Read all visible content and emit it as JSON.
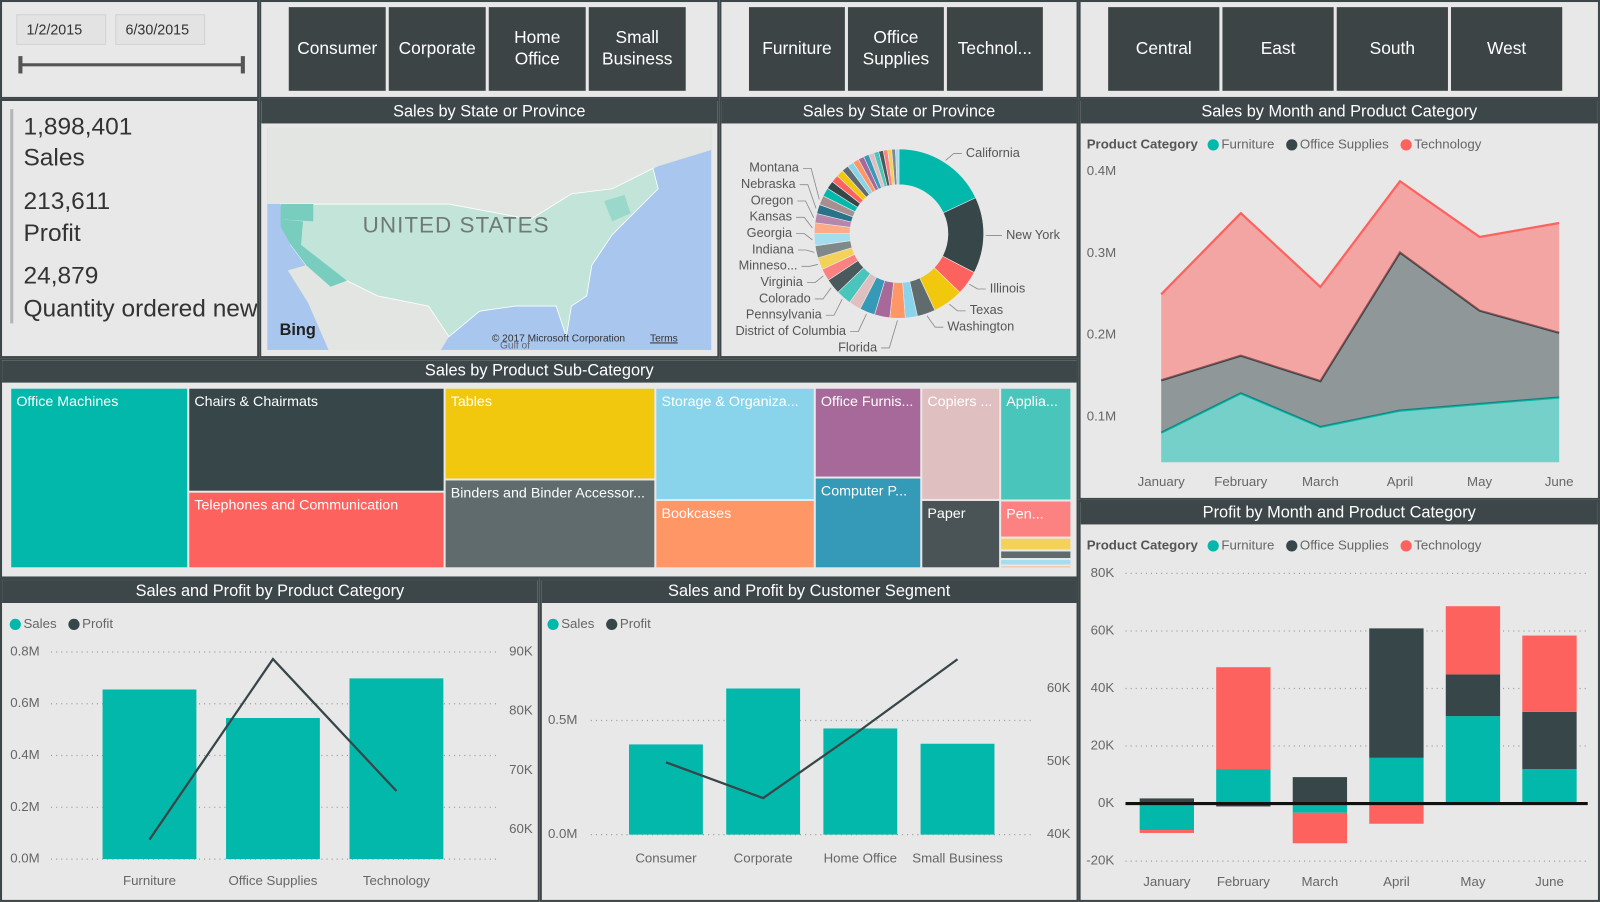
{
  "slicers": {
    "date": {
      "start": "1/2/2015",
      "end": "6/30/2015"
    },
    "segments": [
      "Consumer",
      "Corporate",
      "Home Office",
      "Small Business"
    ],
    "categories": [
      "Furniture",
      "Office Supplies",
      "Technol..."
    ],
    "regions": [
      "Central",
      "East",
      "South",
      "West"
    ]
  },
  "cards": [
    {
      "value": "1,898,401",
      "label": "Sales"
    },
    {
      "value": "213,611",
      "label": "Profit"
    },
    {
      "value": "24,879",
      "label": "Quantity ordered new"
    }
  ],
  "map": {
    "title": "Sales by State or Province",
    "label": "UNITED STATES",
    "provider": "Bing",
    "copyright": "© 2017 Microsoft Corporation",
    "terms": "Terms",
    "water_label": "Gulf of"
  },
  "chart_data": [
    {
      "type": "donut",
      "title": "Sales by State or Province",
      "categories": [
        "California",
        "New York",
        "Illinois",
        "Texas",
        "Washington",
        null,
        "Florida",
        null,
        "District of Columbia",
        null,
        "Pennsylvania",
        "Colorado",
        "Virginia",
        "Minneso...",
        "Indiana",
        "Georgia",
        "Kansas",
        "Oregon",
        "Nebraska",
        "Montana",
        null,
        null,
        null,
        null,
        null,
        null,
        null,
        null,
        null,
        null,
        null,
        null,
        null,
        null,
        null,
        null
      ],
      "values": [
        327000,
        264000,
        84000,
        105000,
        63000,
        42000,
        53000,
        53000,
        53000,
        42000,
        53000,
        53000,
        42000,
        42000,
        42000,
        42000,
        37000,
        32000,
        32000,
        32000,
        30000,
        28000,
        26000,
        25000,
        24000,
        22000,
        21000,
        20000,
        19000,
        18000,
        17000,
        16000,
        15000,
        14000,
        13000,
        12000
      ],
      "colors": [
        "#01B8AA",
        "#374649",
        "#FD625E",
        "#F2C80F",
        "#5F6B6D",
        "#8AD4EB",
        "#FE9666",
        "#A66999",
        "#3599B8",
        "#DFBFBF",
        "#4AC5BB",
        "#4A5A5C",
        "#FB8281",
        "#F4D25A",
        "#7F898A",
        "#A4DDEE",
        "#FDAB89",
        "#B687AC",
        "#28738A",
        "#A78F8F"
      ]
    },
    {
      "type": "area",
      "stacked": true,
      "title": "Sales by Month and Product Category",
      "legend_title": "Product Category",
      "categories": [
        "January",
        "February",
        "March",
        "April",
        "May",
        "June"
      ],
      "series": [
        {
          "name": "Furniture",
          "color": "#01B8AA",
          "values": [
            81000,
            129000,
            88000,
            108000,
            116000,
            124000
          ]
        },
        {
          "name": "Office Supplies",
          "color": "#374649",
          "values": [
            64000,
            46000,
            56000,
            193000,
            114000,
            79000
          ]
        },
        {
          "name": "Technology",
          "color": "#FD625E",
          "values": [
            105000,
            174000,
            115000,
            87000,
            90000,
            134000
          ]
        }
      ],
      "ylim": [
        45000,
        400000
      ],
      "yticks": [
        {
          "value": 100000,
          "label": "0.1M"
        },
        {
          "value": 200000,
          "label": "0.2M"
        },
        {
          "value": 300000,
          "label": "0.3M"
        },
        {
          "value": 400000,
          "label": "0.4M"
        }
      ],
      "grid": false
    },
    {
      "type": "bar",
      "stacked": true,
      "title": "Profit by Month and Product Category",
      "legend_title": "Product Category",
      "categories": [
        "January",
        "February",
        "March",
        "April",
        "May",
        "June"
      ],
      "series": [
        {
          "name": "Furniture",
          "color": "#01B8AA",
          "values": [
            -9200,
            12000,
            -3200,
            15900,
            30400,
            12000
          ]
        },
        {
          "name": "Office Supplies",
          "color": "#374649",
          "values": [
            1800,
            -1000,
            9200,
            45000,
            14500,
            19900
          ]
        },
        {
          "name": "Technology",
          "color": "#FD625E",
          "values": [
            -1000,
            35400,
            -10600,
            -7000,
            23700,
            26500
          ]
        }
      ],
      "ylim": [
        -20000,
        80000
      ],
      "yticks": [
        {
          "value": -20000,
          "label": "-20K"
        },
        {
          "value": 0,
          "label": "0K"
        },
        {
          "value": 20000,
          "label": "20K"
        },
        {
          "value": 40000,
          "label": "40K"
        },
        {
          "value": 60000,
          "label": "60K"
        },
        {
          "value": 80000,
          "label": "80K"
        }
      ],
      "grid": true
    },
    {
      "type": "treemap",
      "title": "Sales by Product Sub-Category",
      "categories": [
        "Office Machines",
        "Chairs & Chairmats",
        "Telephones and Communication",
        "Tables",
        "Binders and Binder Accessor...",
        "Storage & Organiza...",
        "Bookcases",
        "Office Furnis...",
        "Computer P...",
        "Copiers ...",
        "Paper",
        "Applia...",
        "Pen...",
        null,
        null,
        null,
        null
      ],
      "values": [
        316000,
        262000,
        193000,
        190000,
        184000,
        176000,
        107000,
        94000,
        95000,
        87000,
        53000,
        79000,
        26000,
        9000,
        6000,
        4500,
        2000
      ],
      "colors": [
        "#01B8AA",
        "#374649",
        "#FD625E",
        "#F2C80F",
        "#5F6B6D",
        "#8AD4EB",
        "#FE9666",
        "#A66999",
        "#3599B8",
        "#DFBFBF",
        "#4A5456",
        "#4AC5BB",
        "#FB8281",
        "#F4D25A",
        "#5F6B6D",
        "#A4DDEE",
        "#FDAB89"
      ]
    },
    {
      "type": "combo",
      "title": "Sales and Profit by Product Category",
      "categories": [
        "Furniture",
        "Office Supplies",
        "Technology"
      ],
      "series": [
        {
          "name": "Sales",
          "color": "#01B8AA",
          "mark": "bar",
          "values": [
            655000,
            545000,
            698000
          ]
        },
        {
          "name": "Profit",
          "color": "#374649",
          "mark": "line",
          "axis": "y2",
          "values": [
            58300,
            88800,
            66500
          ]
        }
      ],
      "ylim": [
        0,
        800000
      ],
      "yticks": [
        {
          "value": 0,
          "label": "0.0M"
        },
        {
          "value": 200000,
          "label": "0.2M"
        },
        {
          "value": 400000,
          "label": "0.4M"
        },
        {
          "value": 600000,
          "label": "0.6M"
        },
        {
          "value": 800000,
          "label": "0.8M"
        }
      ],
      "y2lim": [
        55000,
        90000
      ],
      "y2ticks": [
        {
          "value": 60000,
          "label": "60K"
        },
        {
          "value": 70000,
          "label": "70K"
        },
        {
          "value": 80000,
          "label": "80K"
        },
        {
          "value": 90000,
          "label": "90K"
        }
      ],
      "grid": true
    },
    {
      "type": "combo",
      "title": "Sales and Profit by Customer Segment",
      "categories": [
        "Consumer",
        "Corporate",
        "Home Office",
        "Small Business"
      ],
      "series": [
        {
          "name": "Sales",
          "color": "#01B8AA",
          "mark": "bar",
          "values": [
            395000,
            640000,
            465000,
            398000
          ]
        },
        {
          "name": "Profit",
          "color": "#374649",
          "mark": "line",
          "axis": "y2",
          "values": [
            49900,
            45000,
            54300,
            64000
          ]
        }
      ],
      "ylim": [
        0,
        800000
      ],
      "yticks": [
        {
          "value": 0,
          "label": "0.0M"
        },
        {
          "value": 500000,
          "label": "0.5M"
        }
      ],
      "y2lim": [
        40000,
        65000
      ],
      "y2ticks": [
        {
          "value": 40000,
          "label": "40K"
        },
        {
          "value": 50000,
          "label": "50K"
        },
        {
          "value": 60000,
          "label": "60K"
        }
      ],
      "grid": true
    }
  ]
}
